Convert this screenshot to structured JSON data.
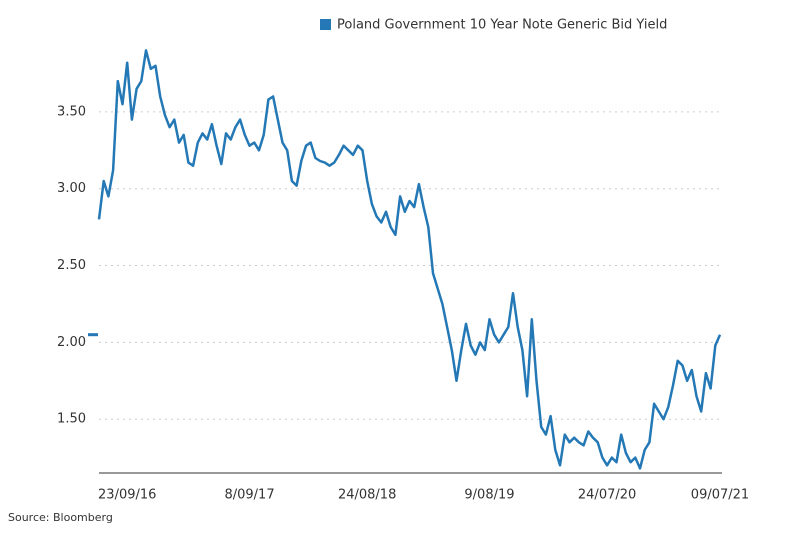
{
  "chart_data": {
    "type": "line",
    "source": "Source: Bloomberg",
    "categories": [
      null,
      null,
      null,
      null,
      null,
      null,
      "23/09/16",
      null,
      null,
      null,
      null,
      null,
      null,
      null,
      null,
      null,
      null,
      null,
      null,
      null,
      null,
      null,
      null,
      null,
      null,
      null,
      null,
      null,
      null,
      null,
      null,
      null,
      "8/09/17",
      null,
      null,
      null,
      null,
      null,
      null,
      null,
      null,
      null,
      null,
      null,
      null,
      null,
      null,
      null,
      null,
      null,
      null,
      null,
      null,
      null,
      null,
      null,
      null,
      "24/08/18",
      null,
      null,
      null,
      null,
      null,
      null,
      null,
      null,
      null,
      null,
      null,
      null,
      null,
      null,
      null,
      null,
      null,
      null,
      null,
      null,
      null,
      null,
      null,
      null,
      null,
      "9/08/19",
      null,
      null,
      null,
      null,
      null,
      null,
      null,
      null,
      null,
      null,
      null,
      null,
      null,
      null,
      null,
      null,
      null,
      null,
      null,
      null,
      null,
      null,
      null,
      null,
      "24/07/20",
      null,
      null,
      null,
      null,
      null,
      null,
      null,
      null,
      null,
      null,
      null,
      null,
      null,
      null,
      null,
      null,
      null,
      null,
      null,
      null,
      null,
      null,
      null,
      "09/07/21"
    ],
    "series": [
      {
        "name": "Poland Government 10 Year Note Generic Bid Yield",
        "color": "#2378b5",
        "values": [
          2.8,
          3.05,
          2.95,
          3.12,
          3.7,
          3.55,
          3.82,
          3.45,
          3.65,
          3.7,
          3.9,
          3.78,
          3.8,
          3.6,
          3.48,
          3.4,
          3.45,
          3.3,
          3.35,
          3.17,
          3.15,
          3.3,
          3.36,
          3.32,
          3.42,
          3.28,
          3.16,
          3.36,
          3.32,
          3.4,
          3.45,
          3.35,
          3.28,
          3.3,
          3.25,
          3.35,
          3.58,
          3.6,
          3.45,
          3.3,
          3.25,
          3.05,
          3.02,
          3.18,
          3.28,
          3.3,
          3.2,
          3.18,
          3.17,
          3.15,
          3.17,
          3.22,
          3.28,
          3.25,
          3.22,
          3.28,
          3.25,
          3.05,
          2.9,
          2.82,
          2.78,
          2.85,
          2.75,
          2.7,
          2.95,
          2.85,
          2.92,
          2.88,
          3.03,
          2.88,
          2.75,
          2.45,
          2.35,
          2.25,
          2.1,
          1.95,
          1.75,
          1.95,
          2.12,
          1.98,
          1.92,
          2.0,
          1.95,
          2.15,
          2.05,
          2.0,
          2.05,
          2.1,
          2.32,
          2.1,
          1.95,
          1.65,
          2.15,
          1.75,
          1.45,
          1.4,
          1.52,
          1.3,
          1.2,
          1.4,
          1.35,
          1.38,
          1.35,
          1.33,
          1.42,
          1.38,
          1.35,
          1.25,
          1.2,
          1.25,
          1.22,
          1.4,
          1.28,
          1.22,
          1.25,
          1.18,
          1.3,
          1.35,
          1.6,
          1.55,
          1.5,
          1.58,
          1.72,
          1.88,
          1.85,
          1.75,
          1.82,
          1.65,
          1.55,
          1.8,
          1.7,
          1.98,
          2.05
        ]
      }
    ],
    "ylim": [
      1.15,
      3.9
    ],
    "yticks": [
      {
        "value": 1.5,
        "label": "1.50"
      },
      {
        "value": 2,
        "label": "2.00"
      },
      {
        "value": 2.5,
        "label": "2.50"
      },
      {
        "value": 3,
        "label": "3.00"
      },
      {
        "value": 3.5,
        "label": "3.50"
      }
    ],
    "grid": true,
    "legend": "top-right"
  }
}
